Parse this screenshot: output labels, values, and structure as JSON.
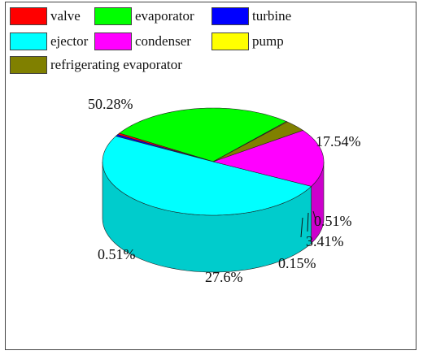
{
  "chart_data": {
    "type": "pie",
    "style": "3d",
    "legend_position": "top-left",
    "categories": [
      "valve",
      "evaporator",
      "turbine",
      "ejector",
      "condenser",
      "pump",
      "refrigerating evaporator"
    ],
    "values": [
      0.51,
      27.6,
      0.51,
      50.28,
      17.54,
      0.15,
      3.41
    ],
    "slices": [
      {
        "name": "valve",
        "value": 0.51,
        "label": "0.51%",
        "color": "#ff0000"
      },
      {
        "name": "evaporator",
        "value": 27.6,
        "label": "27.6%",
        "color": "#00ff00"
      },
      {
        "name": "turbine",
        "value": 0.51,
        "label": "0.51%",
        "color": "#0000ff"
      },
      {
        "name": "ejector",
        "value": 50.28,
        "label": "50.28%",
        "color": "#00ffff"
      },
      {
        "name": "condenser",
        "value": 17.54,
        "label": "17.54%",
        "color": "#ff00ff"
      },
      {
        "name": "pump",
        "value": 0.15,
        "label": "0.15%",
        "color": "#ffff00"
      },
      {
        "name": "refrigerating evaporator",
        "value": 3.41,
        "label": "3.41%",
        "color": "#808000"
      }
    ]
  }
}
